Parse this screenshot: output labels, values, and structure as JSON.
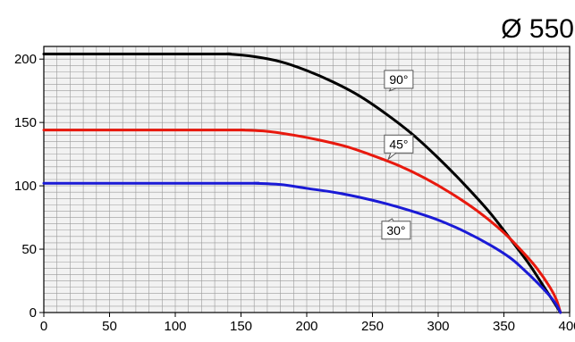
{
  "chart_data": {
    "type": "line",
    "title": "Ø 550",
    "xlabel": "",
    "ylabel": "",
    "xlim": [
      0,
      400
    ],
    "ylim": [
      0,
      210
    ],
    "x_ticks": [
      0,
      50,
      100,
      150,
      200,
      250,
      300,
      350,
      400
    ],
    "y_ticks": [
      0,
      50,
      100,
      150,
      200
    ],
    "x_tick_labels": [
      "0",
      "50",
      "100",
      "150",
      "200",
      "250",
      "300",
      "350",
      "400"
    ],
    "y_tick_labels": [
      "0",
      "50",
      "100",
      "150",
      "200"
    ],
    "grid": true,
    "colors": {
      "background": "#f2f2f2",
      "grid": "#9a9a9a"
    },
    "series": [
      {
        "name": "90°",
        "color": "#000000",
        "x": [
          0,
          130,
          140,
          160,
          180,
          200,
          220,
          240,
          260,
          280,
          300,
          320,
          340,
          360,
          370,
          380,
          385,
          390,
          393
        ],
        "y": [
          204,
          204,
          204,
          202,
          198,
          191,
          182,
          171,
          157,
          141,
          122,
          101,
          78,
          51,
          37,
          21,
          13,
          5,
          0
        ]
      },
      {
        "name": "45°",
        "color": "#e8190e",
        "x": [
          0,
          140,
          150,
          170,
          190,
          210,
          230,
          250,
          270,
          290,
          310,
          330,
          350,
          365,
          375,
          385,
          390,
          393
        ],
        "y": [
          144,
          144,
          144,
          143,
          140,
          136,
          131,
          124,
          116,
          106,
          94,
          80,
          63,
          47,
          35,
          20,
          10,
          0
        ]
      },
      {
        "name": "30°",
        "color": "#1a1ad6",
        "x": [
          0,
          150,
          160,
          180,
          200,
          220,
          240,
          260,
          280,
          300,
          320,
          340,
          355,
          365,
          375,
          385,
          390,
          393
        ],
        "y": [
          102,
          102,
          102,
          101,
          98,
          95,
          91,
          86,
          80,
          73,
          64,
          53,
          43,
          34,
          24,
          13,
          6,
          0
        ]
      }
    ],
    "annotations": [
      {
        "text": "90°",
        "x": 270,
        "y": 184,
        "target": [
          263,
          175
        ]
      },
      {
        "text": "45°",
        "x": 270,
        "y": 133,
        "target": [
          262,
          121
        ]
      },
      {
        "text": "30°",
        "x": 268,
        "y": 65,
        "target": [
          265,
          74
        ]
      }
    ]
  }
}
